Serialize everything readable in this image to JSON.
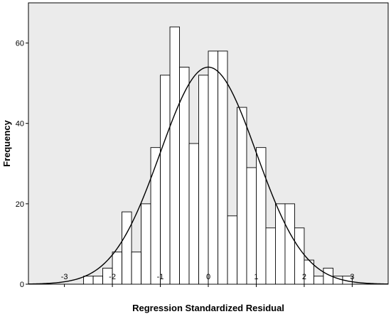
{
  "chart_data": {
    "type": "bar",
    "subtype": "histogram-with-normal-curve",
    "xlabel": "Regression Standardized Residual",
    "ylabel": "Frequency",
    "xlim": [
      -3.75,
      3.75
    ],
    "ylim": [
      0,
      70
    ],
    "x_ticks": [
      -3,
      -2,
      -1,
      0,
      1,
      2,
      3
    ],
    "x_tick_labels": [
      "-3",
      "-2",
      "-1",
      "0",
      "1",
      "2",
      "3"
    ],
    "y_ticks": [
      0,
      20,
      40,
      60
    ],
    "y_tick_labels": [
      "0",
      "20",
      "40",
      "60"
    ],
    "bin_width": 0.2,
    "bins": [
      {
        "x0": -2.6,
        "x1": -2.4,
        "count": 2
      },
      {
        "x0": -2.4,
        "x1": -2.2,
        "count": 2
      },
      {
        "x0": -2.2,
        "x1": -2.0,
        "count": 4
      },
      {
        "x0": -2.0,
        "x1": -1.8,
        "count": 8
      },
      {
        "x0": -1.8,
        "x1": -1.6,
        "count": 18
      },
      {
        "x0": -1.6,
        "x1": -1.4,
        "count": 8
      },
      {
        "x0": -1.4,
        "x1": -1.2,
        "count": 20
      },
      {
        "x0": -1.2,
        "x1": -1.0,
        "count": 34
      },
      {
        "x0": -1.0,
        "x1": -0.8,
        "count": 52
      },
      {
        "x0": -0.8,
        "x1": -0.6,
        "count": 64
      },
      {
        "x0": -0.6,
        "x1": -0.4,
        "count": 54
      },
      {
        "x0": -0.4,
        "x1": -0.2,
        "count": 35
      },
      {
        "x0": -0.2,
        "x1": 0.0,
        "count": 52
      },
      {
        "x0": 0.0,
        "x1": 0.2,
        "count": 58
      },
      {
        "x0": 0.2,
        "x1": 0.4,
        "count": 58
      },
      {
        "x0": 0.4,
        "x1": 0.6,
        "count": 17
      },
      {
        "x0": 0.6,
        "x1": 0.8,
        "count": 44
      },
      {
        "x0": 0.8,
        "x1": 1.0,
        "count": 29
      },
      {
        "x0": 1.0,
        "x1": 1.2,
        "count": 34
      },
      {
        "x0": 1.2,
        "x1": 1.4,
        "count": 14
      },
      {
        "x0": 1.4,
        "x1": 1.6,
        "count": 20
      },
      {
        "x0": 1.6,
        "x1": 1.8,
        "count": 20
      },
      {
        "x0": 1.8,
        "x1": 2.0,
        "count": 14
      },
      {
        "x0": 2.0,
        "x1": 2.2,
        "count": 6
      },
      {
        "x0": 2.2,
        "x1": 2.4,
        "count": 2
      },
      {
        "x0": 2.4,
        "x1": 2.6,
        "count": 4
      },
      {
        "x0": 2.6,
        "x1": 2.8,
        "count": 2
      },
      {
        "x0": 2.8,
        "x1": 3.0,
        "count": 2
      }
    ],
    "normal_curve": {
      "mean": 0,
      "peak": 54
    },
    "grid": false,
    "legend": "none"
  },
  "colors": {
    "plot_background": "#ebebeb",
    "page_background": "#ffffff",
    "bar_fill": "#ffffff",
    "bar_stroke": "#000000",
    "curve": "#000000",
    "axis": "#000000"
  }
}
